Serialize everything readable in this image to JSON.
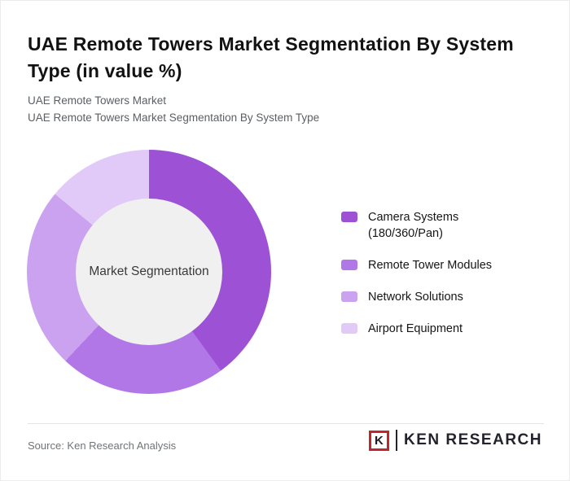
{
  "page": {
    "title": "UAE Remote Towers Market Segmentation By System Type (in value %)",
    "subtitle1": "UAE Remote Towers Market",
    "subtitle2": "UAE Remote Towers Market Segmentation By System Type"
  },
  "chart_data": {
    "type": "pie",
    "variant": "donut",
    "title": "UAE Remote Towers Market Segmentation By System Type (in value %)",
    "center_label": "Market Segmentation",
    "categories": [
      "Camera Systems (180/360/Pan)",
      "Remote Tower Modules",
      "Network Solutions",
      "Airport Equipment"
    ],
    "values": [
      40,
      22,
      24,
      14
    ],
    "colors": [
      "#9d52d5",
      "#b277e6",
      "#cba2f0",
      "#e2caf8"
    ],
    "start_angle_deg": 0,
    "direction": "clockwise",
    "hole_color": "#f0f0f0",
    "legend_position": "right"
  },
  "legend": {
    "items": [
      {
        "label": "Camera Systems",
        "label_line2": "(180/360/Pan)",
        "color": "#9d52d5"
      },
      {
        "label": "Remote Tower Modules",
        "color": "#b277e6"
      },
      {
        "label": "Network Solutions",
        "color": "#cba2f0"
      },
      {
        "label": "Airport Equipment",
        "color": "#e2caf8"
      }
    ]
  },
  "footer": {
    "source": "Source: Ken Research Analysis",
    "logo_letter": "K",
    "logo_text": "KEN RESEARCH",
    "logo_accent_color": "#c2262d"
  }
}
